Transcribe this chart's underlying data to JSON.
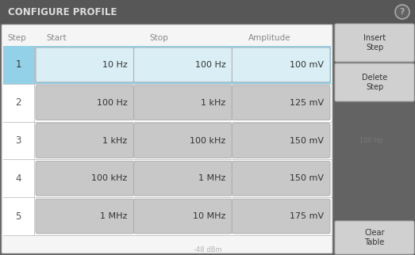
{
  "title": "CONFIGURE PROFILE",
  "bg_color": "#636363",
  "title_bar_color": "#555555",
  "table_outer_bg": "#f0f0f0",
  "table_inner_bg": "#ffffff",
  "row1_bg": "#92d1e8",
  "row_bg": "#ffffff",
  "row_sep_color": "#c0c0c0",
  "cell_bg_row1": "#daeef5",
  "cell_bg": "#c8c8c8",
  "cell_ec": "#aaaaaa",
  "button_bg": "#d0d0d0",
  "button_ec": "#aaaaaa",
  "header_text_color": "#888888",
  "step_color_row1": "#333333",
  "step_color": "#555555",
  "cell_text_color": "#333333",
  "title_text_color": "#dddddd",
  "help_circle_ec": "#aaaaaa",
  "help_text_color": "#aaaaaa",
  "watermark1": "100 Hz",
  "watermark2": "-48 dBm",
  "watermark1_color": "#888888",
  "watermark2_color": "#888888",
  "columns": [
    "Step",
    "Start",
    "Stop",
    "Amplitude"
  ],
  "rows": [
    [
      "1",
      "10 Hz",
      "100 Hz",
      "100 mV"
    ],
    [
      "2",
      "100 Hz",
      "1 kHz",
      "125 mV"
    ],
    [
      "3",
      "1 kHz",
      "100 kHz",
      "150 mV"
    ],
    [
      "4",
      "100 kHz",
      "1 MHz",
      "150 mV"
    ],
    [
      "5",
      "1 MHz",
      "10 MHz",
      "175 mV"
    ]
  ],
  "btn_labels": [
    "Insert\nStep",
    "Delete\nStep",
    "Clear\nTable"
  ],
  "figw": 5.23,
  "figh": 3.22,
  "dpi": 100
}
